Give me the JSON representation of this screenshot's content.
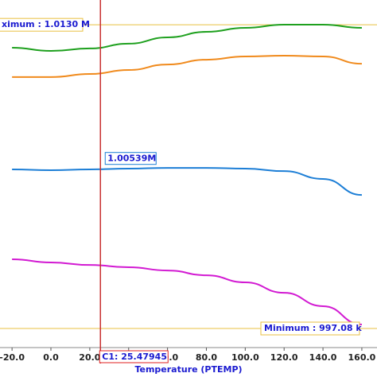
{
  "chart_data": {
    "type": "line",
    "x_label": "Temperature (PTEMP)",
    "x": [
      -20,
      0,
      20,
      40,
      60,
      80,
      100,
      120,
      140,
      160
    ],
    "series": [
      {
        "color": "#1ea01e",
        "values": [
          1011800,
          1011630,
          1011760,
          1012010,
          1012340,
          1012630,
          1012840,
          1013010,
          1013010,
          1012840
        ]
      },
      {
        "color": "#f08a1c",
        "values": [
          1010260,
          1010260,
          1010420,
          1010630,
          1010920,
          1011170,
          1011340,
          1011380,
          1011340,
          1010960
        ]
      },
      {
        "color": "#1c7ed6",
        "values": [
          1005420,
          1005380,
          1005420,
          1005460,
          1005500,
          1005500,
          1005460,
          1005330,
          1004920,
          1004080
        ]
      },
      {
        "color": "#d21ad2",
        "values": [
          1000710,
          1000540,
          1000410,
          1000290,
          1000120,
          999870,
          999500,
          998950,
          998250,
          997290
        ]
      }
    ],
    "xlim": [
      -26.2,
      167.8
    ],
    "ylim": [
      996080,
      1014300
    ],
    "xticks": [
      {
        "value": -20,
        "label": "-20.0"
      },
      {
        "value": 0,
        "label": "0.0"
      },
      {
        "value": 20,
        "label": "20.0"
      },
      {
        "value": 40,
        "label": "40.0"
      },
      {
        "value": 60,
        "label": "60.0"
      },
      {
        "value": 80,
        "label": "80.0"
      },
      {
        "value": 100,
        "label": "100.0"
      },
      {
        "value": 120,
        "label": "120.0"
      },
      {
        "value": 140,
        "label": "140.0"
      },
      {
        "value": 160,
        "label": "160.0"
      }
    ],
    "maximum": {
      "value": 1013000,
      "label": "ximum : 1.0130 M"
    },
    "minimum": {
      "value": 997080,
      "label": "Minimum : 997.08 k"
    },
    "cursor": {
      "value": 25.47945,
      "label": "C1: 25.47945"
    },
    "readout": {
      "value": 1005390,
      "label": "1.00539M"
    }
  }
}
